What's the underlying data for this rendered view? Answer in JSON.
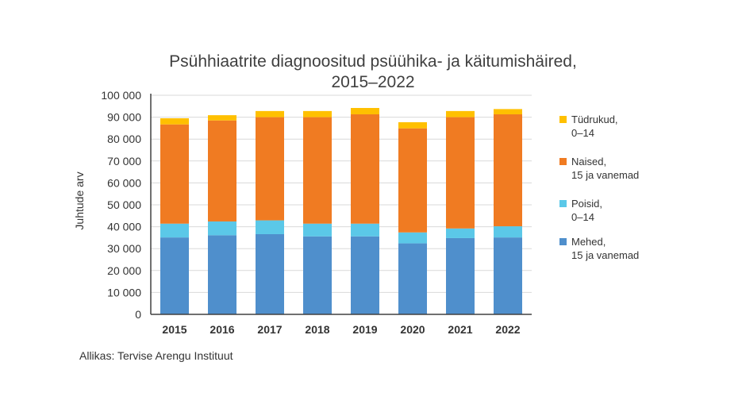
{
  "chart_data": {
    "type": "bar",
    "stacked": true,
    "title": "Psühhiaatrite diagnoositud psüühika- ja käitumishäired,\n2015–2022",
    "title_lines": [
      "Psühhiaatrite diagnoositud psüühika- ja käitumishäired,",
      "2015–2022"
    ],
    "xlabel": "",
    "ylabel": "Juhtude arv",
    "ylim": [
      0,
      100000
    ],
    "yticks": [
      "0",
      "10 000",
      "20 000",
      "30 000",
      "40 000",
      "50 000",
      "60 000",
      "70 000",
      "80 000",
      "90 000",
      "100 000"
    ],
    "grid": true,
    "legend_position": "right",
    "categories": [
      "2015",
      "2016",
      "2017",
      "2018",
      "2019",
      "2020",
      "2021",
      "2022"
    ],
    "series": [
      {
        "name": "Mehed,\n15 ja vanemad",
        "color": "#4f8fcc",
        "values": [
          35100,
          36100,
          36600,
          35600,
          35600,
          32400,
          34800,
          35100
        ]
      },
      {
        "name": "Poisid,\n0–14",
        "color": "#5bc8e8",
        "values": [
          6300,
          6300,
          6300,
          5800,
          5800,
          5000,
          4400,
          5100
        ]
      },
      {
        "name": "Naised,\n15 ja vanemad",
        "color": "#f07b22",
        "values": [
          45300,
          46100,
          47100,
          48600,
          49900,
          47500,
          50800,
          51100
        ]
      },
      {
        "name": "Tüdrukud,\n0–14",
        "color": "#ffc000",
        "values": [
          2800,
          2400,
          2800,
          2800,
          2900,
          2800,
          2800,
          2400
        ]
      }
    ],
    "source": "Allikas: Tervise Arengu Instituut"
  }
}
